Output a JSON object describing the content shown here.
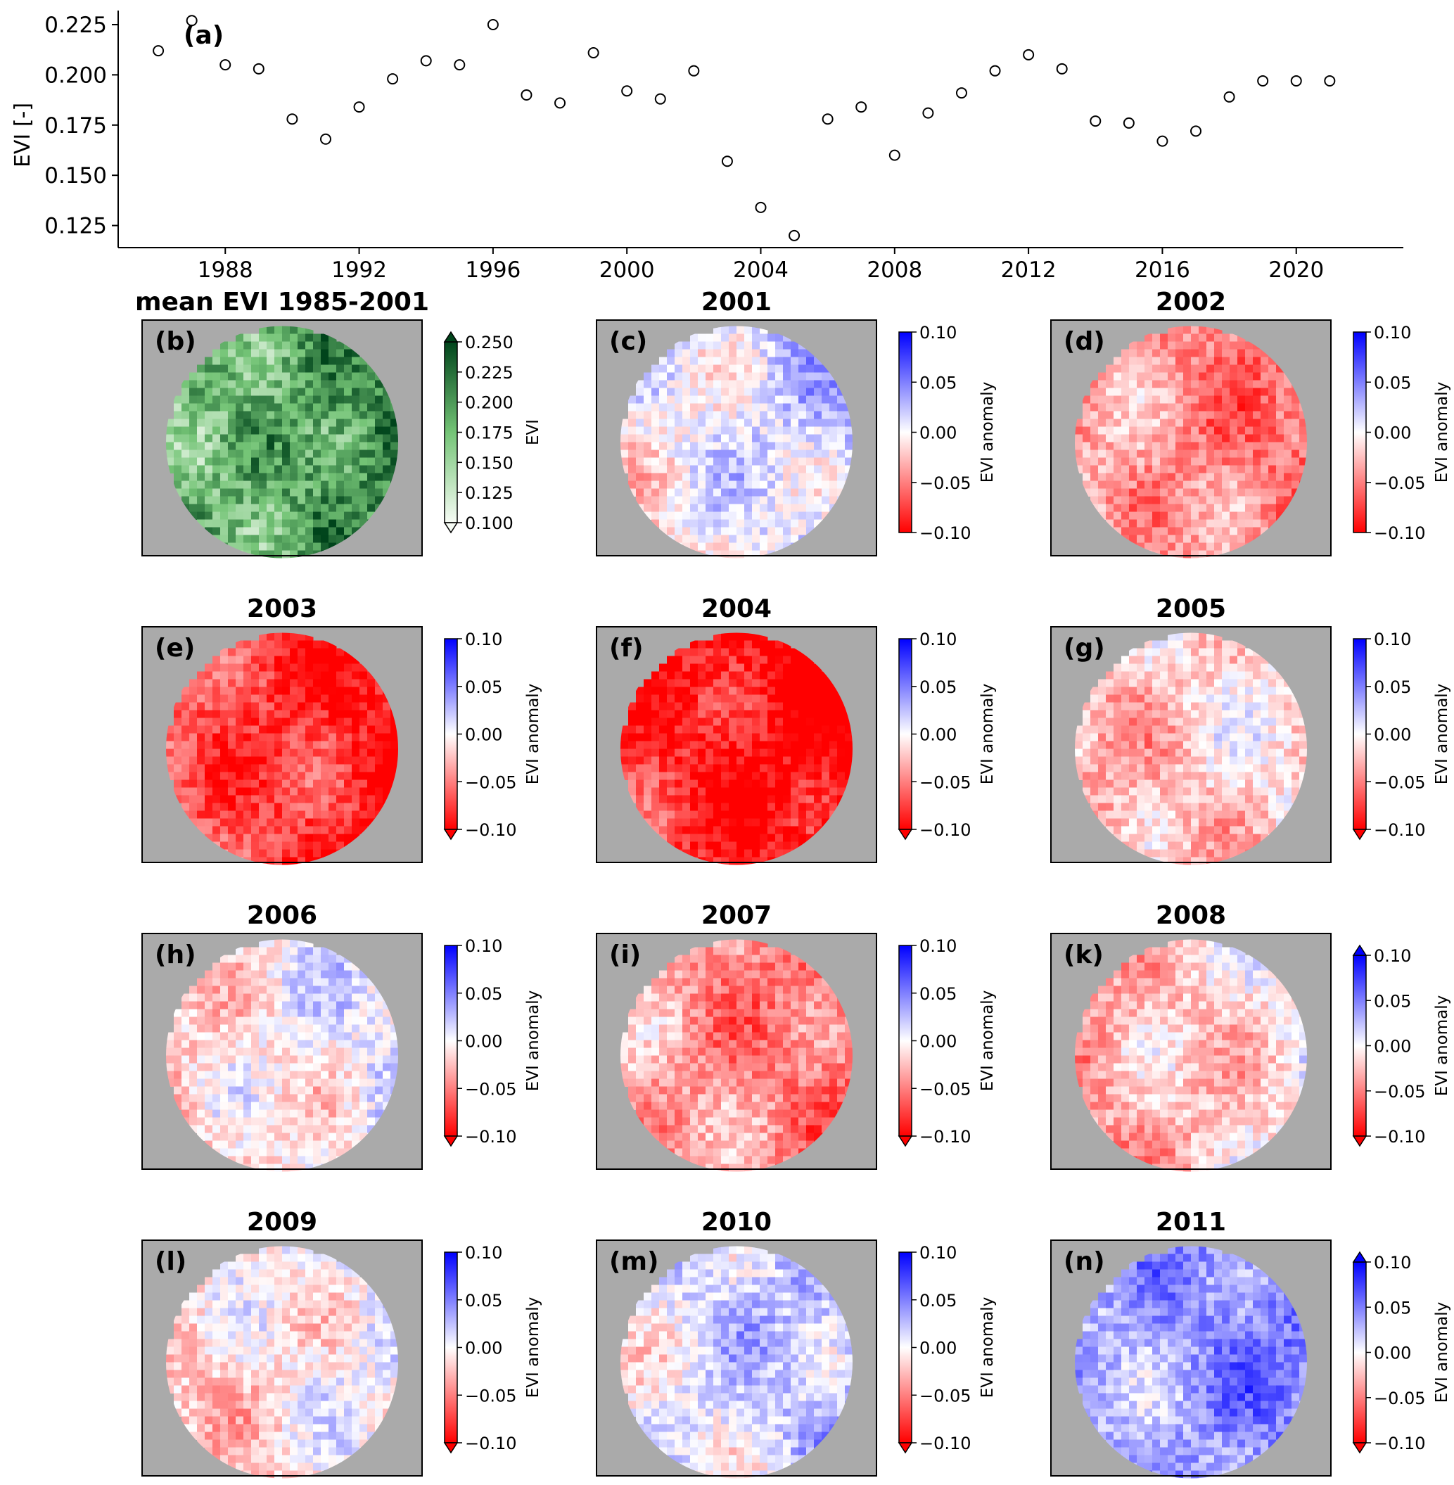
{
  "chart_data": [
    {
      "type": "scatter",
      "panel_label": "(a)",
      "title": "",
      "xlabel": "",
      "ylabel": "EVI [-]",
      "xlim": [
        1984.8,
        2023.2
      ],
      "ylim": [
        0.114,
        0.232
      ],
      "xticks": [
        "1988",
        "1992",
        "1996",
        "2000",
        "2004",
        "2008",
        "2012",
        "2016",
        "2020"
      ],
      "yticks": [
        "0.125",
        "0.150",
        "0.175",
        "0.200",
        "0.225"
      ],
      "marker": "open-circle",
      "grid": false,
      "points": [
        {
          "x": 1986,
          "y": 0.212
        },
        {
          "x": 1987,
          "y": 0.227
        },
        {
          "x": 1988,
          "y": 0.205
        },
        {
          "x": 1989,
          "y": 0.203
        },
        {
          "x": 1990,
          "y": 0.178
        },
        {
          "x": 1991,
          "y": 0.168
        },
        {
          "x": 1992,
          "y": 0.184
        },
        {
          "x": 1993,
          "y": 0.198
        },
        {
          "x": 1994,
          "y": 0.207
        },
        {
          "x": 1995,
          "y": 0.205
        },
        {
          "x": 1996,
          "y": 0.225
        },
        {
          "x": 1997,
          "y": 0.19
        },
        {
          "x": 1998,
          "y": 0.186
        },
        {
          "x": 1999,
          "y": 0.211
        },
        {
          "x": 2000,
          "y": 0.192
        },
        {
          "x": 2001,
          "y": 0.188
        },
        {
          "x": 2002,
          "y": 0.202
        },
        {
          "x": 2003,
          "y": 0.157
        },
        {
          "x": 2004,
          "y": 0.134
        },
        {
          "x": 2005,
          "y": 0.12
        },
        {
          "x": 2006,
          "y": 0.178
        },
        {
          "x": 2007,
          "y": 0.184
        },
        {
          "x": 2008,
          "y": 0.16
        },
        {
          "x": 2009,
          "y": 0.181
        },
        {
          "x": 2010,
          "y": 0.191
        },
        {
          "x": 2011,
          "y": 0.202
        },
        {
          "x": 2012,
          "y": 0.21
        },
        {
          "x": 2013,
          "y": 0.203
        },
        {
          "x": 2014,
          "y": 0.177
        },
        {
          "x": 2015,
          "y": 0.176
        },
        {
          "x": 2016,
          "y": 0.167
        },
        {
          "x": 2017,
          "y": 0.172
        },
        {
          "x": 2018,
          "y": 0.189
        },
        {
          "x": 2019,
          "y": 0.197
        },
        {
          "x": 2020,
          "y": 0.197
        },
        {
          "x": 2021,
          "y": 0.197
        }
      ]
    },
    {
      "type": "heatmap",
      "panels": [
        {
          "letter": "(b)",
          "title": "mean EVI 1985-2001",
          "colormap": "Greens",
          "cbar_label": "EVI",
          "cbar_ticks": [
            "0.250",
            "0.225",
            "0.200",
            "0.175",
            "0.150",
            "0.125",
            "0.100"
          ],
          "extend": "both",
          "tone": "mean"
        },
        {
          "letter": "(c)",
          "title": "2001",
          "colormap": "bwr_r",
          "cbar_label": "EVI anomaly",
          "cbar_ticks": [
            "0.10",
            "0.05",
            "0.00",
            "−0.05",
            "−0.10"
          ],
          "extend": "none",
          "tone": 0.08
        },
        {
          "letter": "(d)",
          "title": "2002",
          "colormap": "bwr_r",
          "cbar_label": "EVI anomaly",
          "cbar_ticks": [
            "0.10",
            "0.05",
            "0.00",
            "−0.05",
            "−0.10"
          ],
          "extend": "none",
          "tone": -0.45
        },
        {
          "letter": "(e)",
          "title": "2003",
          "colormap": "bwr_r",
          "cbar_label": "EVI anomaly",
          "cbar_ticks": [
            "0.10",
            "0.05",
            "0.00",
            "−0.05",
            "−0.10"
          ],
          "extend": "min",
          "tone": -0.78
        },
        {
          "letter": "(f)",
          "title": "2004",
          "colormap": "bwr_r",
          "cbar_label": "EVI anomaly",
          "cbar_ticks": [
            "0.10",
            "0.05",
            "0.00",
            "−0.05",
            "−0.10"
          ],
          "extend": "min",
          "tone": -0.92
        },
        {
          "letter": "(g)",
          "title": "2005",
          "colormap": "bwr_r",
          "cbar_label": "EVI anomaly",
          "cbar_ticks": [
            "0.10",
            "0.05",
            "0.00",
            "−0.05",
            "−0.10"
          ],
          "extend": "min",
          "tone": -0.2
        },
        {
          "letter": "(h)",
          "title": "2006",
          "colormap": "bwr_r",
          "cbar_label": "EVI anomaly",
          "cbar_ticks": [
            "0.10",
            "0.05",
            "0.00",
            "−0.05",
            "−0.10"
          ],
          "extend": "min",
          "tone": -0.05
        },
        {
          "letter": "(i)",
          "title": "2007",
          "colormap": "bwr_r",
          "cbar_label": "EVI anomaly",
          "cbar_ticks": [
            "0.10",
            "0.05",
            "0.00",
            "−0.05",
            "−0.10"
          ],
          "extend": "min",
          "tone": -0.45
        },
        {
          "letter": "(k)",
          "title": "2008",
          "colormap": "bwr_r",
          "cbar_label": "EVI anomaly",
          "cbar_ticks": [
            "0.10",
            "0.05",
            "0.00",
            "−0.05",
            "−0.10"
          ],
          "extend": "both",
          "tone": -0.22
        },
        {
          "letter": "(l)",
          "title": "2009",
          "colormap": "bwr_r",
          "cbar_label": "EVI anomaly",
          "cbar_ticks": [
            "0.10",
            "0.05",
            "0.00",
            "−0.05",
            "−0.10"
          ],
          "extend": "min",
          "tone": -0.08
        },
        {
          "letter": "(m)",
          "title": "2010",
          "colormap": "bwr_r",
          "cbar_label": "EVI anomaly",
          "cbar_ticks": [
            "0.10",
            "0.05",
            "0.00",
            "−0.05",
            "−0.10"
          ],
          "extend": "min",
          "tone": 0.15
        },
        {
          "letter": "(n)",
          "title": "2011",
          "colormap": "bwr_r",
          "cbar_label": "EVI anomaly",
          "cbar_ticks": [
            "0.10",
            "0.05",
            "0.00",
            "−0.05",
            "−0.10"
          ],
          "extend": "both",
          "tone": 0.4
        }
      ]
    }
  ],
  "colors": {
    "map_background": "#aaaaaa",
    "green_dark": "#00441b",
    "green_light": "#f7fcf5",
    "anomaly_positive": "#0000ff",
    "anomaly_negative": "#ff0000",
    "marker_edge": "#000000"
  }
}
